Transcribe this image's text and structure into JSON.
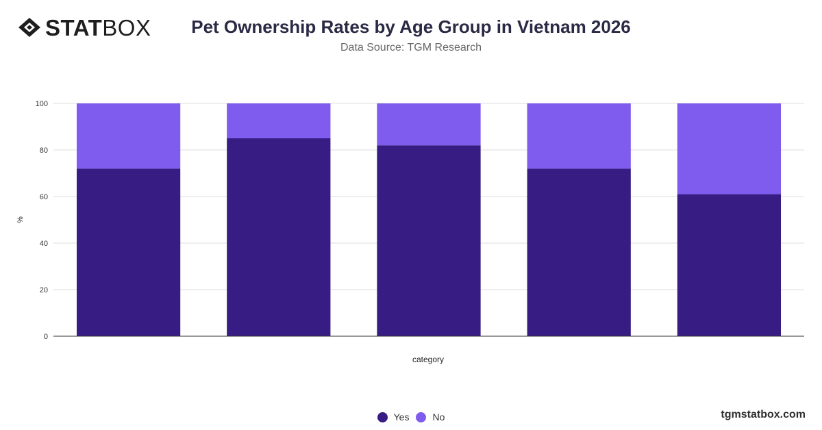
{
  "header": {
    "logo_bold": "STAT",
    "logo_light": "BOX",
    "title": "Pet Ownership Rates by Age Group in Vietnam 2026",
    "subtitle": "Data Source: TGM Research"
  },
  "footer": {
    "watermark": "tgmstatbox.com"
  },
  "colors": {
    "yes": "#371c84",
    "no": "#7f5bee",
    "grid": "#dddddd",
    "axis": "#333333"
  },
  "chart_data": {
    "type": "bar",
    "stacked": true,
    "categories": [
      "",
      "",
      "",
      "",
      ""
    ],
    "series": [
      {
        "name": "Yes",
        "values": [
          72,
          85,
          82,
          72,
          61
        ]
      },
      {
        "name": "No",
        "values": [
          28,
          15,
          18,
          28,
          39
        ]
      }
    ],
    "xlabel": "category",
    "ylabel": "%",
    "ylim": [
      0,
      100
    ],
    "yticks": [
      0,
      20,
      40,
      60,
      80,
      100
    ],
    "grid": true,
    "legend_position": "bottom"
  }
}
